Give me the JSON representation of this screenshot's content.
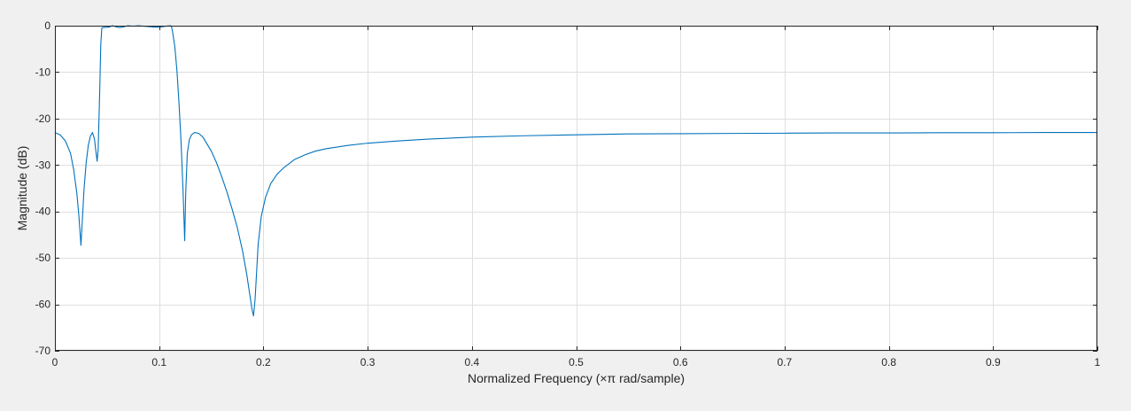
{
  "chart_data": {
    "type": "line",
    "xlabel": "Normalized Frequency  (×π rad/sample)",
    "ylabel": "Magnitude (dB)",
    "xlim": [
      0,
      1
    ],
    "ylim": [
      -70,
      0
    ],
    "xticks": [
      "0",
      "0.1",
      "0.2",
      "0.3",
      "0.4",
      "0.5",
      "0.6",
      "0.7",
      "0.8",
      "0.9",
      "1"
    ],
    "yticks": [
      "0",
      "-10",
      "-20",
      "-30",
      "-40",
      "-50",
      "-60",
      "-70"
    ],
    "grid": true,
    "line_color": "#0072bd",
    "grid_color": "#dfdfdf",
    "axes_background": "#ffffff",
    "figure_background": "#f0f0f0",
    "series": [
      {
        "x": [
          0,
          0.005,
          0.01,
          0.015,
          0.018,
          0.021,
          0.023,
          0.025,
          0.0265,
          0.028,
          0.03,
          0.032,
          0.034,
          0.036,
          0.038,
          0.039,
          0.0405,
          0.0415,
          0.043,
          0.044,
          0.045,
          0.046,
          0.048,
          0.052,
          0.055,
          0.058,
          0.062,
          0.066,
          0.07,
          0.075,
          0.08,
          0.085,
          0.09,
          0.095,
          0.1,
          0.104,
          0.108,
          0.111,
          0.112,
          0.113,
          0.115,
          0.117,
          0.119,
          0.121,
          0.123,
          0.1245,
          0.1255,
          0.127,
          0.129,
          0.131,
          0.134,
          0.138,
          0.142,
          0.146,
          0.15,
          0.155,
          0.16,
          0.165,
          0.17,
          0.175,
          0.18,
          0.184,
          0.187,
          0.189,
          0.1905,
          0.192,
          0.1935,
          0.195,
          0.198,
          0.202,
          0.207,
          0.213,
          0.22,
          0.23,
          0.24,
          0.25,
          0.26,
          0.28,
          0.3,
          0.33,
          0.36,
          0.4,
          0.45,
          0.5,
          0.55,
          0.6,
          0.65,
          0.7,
          0.75,
          0.8,
          0.85,
          0.9,
          0.95,
          1.0
        ],
        "values": [
          -23.0,
          -23.5,
          -24.8,
          -27.5,
          -31.0,
          -36.0,
          -41.0,
          -47.3,
          -41.0,
          -35.0,
          -29.5,
          -25.8,
          -23.8,
          -23.0,
          -24.5,
          -26.5,
          -29.2,
          -26.5,
          -14.0,
          -4.0,
          -0.5,
          -0.4,
          -0.35,
          -0.3,
          0.0,
          -0.2,
          -0.4,
          -0.25,
          0.0,
          -0.1,
          0.0,
          -0.1,
          -0.2,
          -0.3,
          -0.3,
          -0.2,
          -0.05,
          0.0,
          -0.3,
          -1.5,
          -4.5,
          -9.5,
          -16.5,
          -25.0,
          -36.0,
          -46.3,
          -36.0,
          -27.5,
          -24.5,
          -23.5,
          -23.0,
          -23.2,
          -24.0,
          -25.5,
          -27.0,
          -29.5,
          -32.5,
          -35.8,
          -39.5,
          -43.5,
          -48.5,
          -53.5,
          -58.0,
          -61.0,
          -62.5,
          -59.0,
          -53.0,
          -47.0,
          -41.0,
          -37.0,
          -34.0,
          -32.0,
          -30.5,
          -28.8,
          -27.8,
          -27.0,
          -26.5,
          -25.8,
          -25.3,
          -24.8,
          -24.4,
          -24.0,
          -23.7,
          -23.5,
          -23.3,
          -23.25,
          -23.2,
          -23.15,
          -23.1,
          -23.1,
          -23.05,
          -23.05,
          -23.0,
          -23.0
        ]
      }
    ]
  }
}
